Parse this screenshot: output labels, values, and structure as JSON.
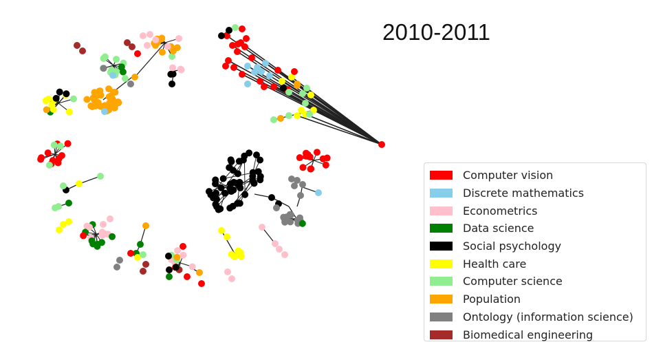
{
  "title": "2010-2011",
  "legend": [
    {
      "label": "Computer vision",
      "color": "#ff0000"
    },
    {
      "label": "Discrete mathematics",
      "color": "#87ceeb"
    },
    {
      "label": "Econometrics",
      "color": "#ffc0cb"
    },
    {
      "label": "Data science",
      "color": "#008000"
    },
    {
      "label": "Social psychology",
      "color": "#000000"
    },
    {
      "label": "Health care",
      "color": "#ffff00"
    },
    {
      "label": "Computer science",
      "color": "#90ee90"
    },
    {
      "label": "Population",
      "color": "#ffa500"
    },
    {
      "label": "Ontology (information science)",
      "color": "#808080"
    },
    {
      "label": "Biomedical engineering",
      "color": "#a52a2a"
    }
  ],
  "edge_color": "#222222"
}
